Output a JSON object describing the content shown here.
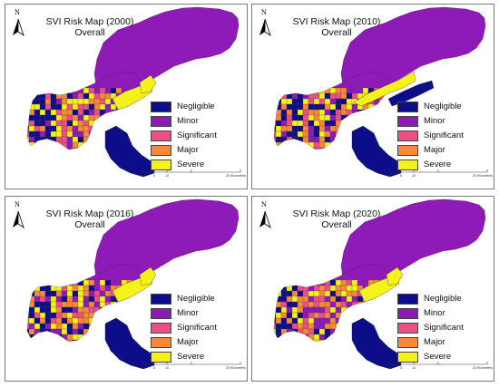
{
  "legend": {
    "categories": [
      {
        "label": "Negligible",
        "color": "#0d0d8a"
      },
      {
        "label": "Minor",
        "color": "#8e1ab8"
      },
      {
        "label": "Significant",
        "color": "#ec4f86"
      },
      {
        "label": "Major",
        "color": "#f7893a"
      },
      {
        "label": "Severe",
        "color": "#f4f21a"
      }
    ]
  },
  "panels": [
    {
      "title": "SVI Risk Map (2000)",
      "subtitle": "Overall",
      "north_label": "N",
      "scale": {
        "labels": [
          "0",
          "5",
          "10",
          "20 Kilometers"
        ]
      }
    },
    {
      "title": "SVI Risk Map (2010)",
      "subtitle": "Overall",
      "north_label": "N",
      "scale": {
        "labels": [
          "0",
          "5",
          "10",
          "20 Kilometers"
        ]
      }
    },
    {
      "title": "SVI Risk Map (2016)",
      "subtitle": "Overall",
      "north_label": "N",
      "scale": {
        "labels": [
          "0",
          "5",
          "10",
          "20 Kilometers"
        ]
      }
    },
    {
      "title": "SVI Risk Map (2020)",
      "subtitle": "Overall",
      "north_label": "N",
      "scale": {
        "labels": [
          "0",
          "5",
          "10",
          "20 Kilometers"
        ]
      }
    }
  ]
}
